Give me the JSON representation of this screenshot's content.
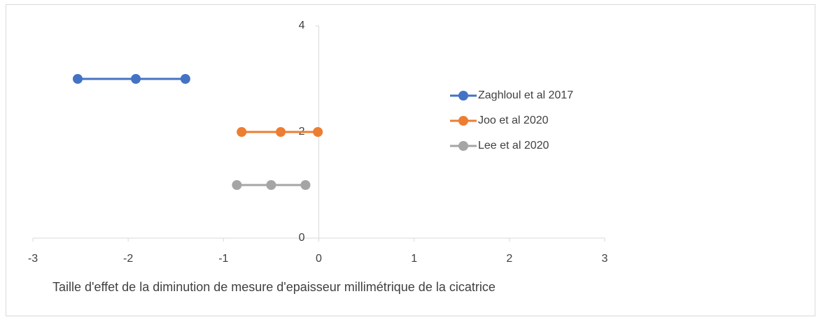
{
  "chart_data": {
    "type": "scatter",
    "x_label": "Taille d'effet de la diminution de mesure d'epaisseur millimétrique de la cicatrice",
    "series": [
      {
        "name": "Zaghloul et al 2017",
        "color": "#4472c4",
        "x": [
          -2.53,
          -1.92,
          -1.4
        ],
        "values": [
          3,
          3,
          3
        ]
      },
      {
        "name": "Joo et al 2020",
        "color": "#ed7d31",
        "x": [
          -0.81,
          -0.4,
          -0.01
        ],
        "values": [
          2,
          2,
          2
        ]
      },
      {
        "name": "Lee et al 2020",
        "color": "#a5a5a5",
        "x": [
          -0.86,
          -0.5,
          -0.14
        ],
        "values": [
          1,
          1,
          1
        ]
      }
    ],
    "xlim": [
      -3,
      3
    ],
    "xticks": [
      -3,
      -2,
      -1,
      0,
      1,
      2,
      3
    ],
    "ylim": [
      0,
      4
    ],
    "yticks": [
      0,
      2,
      4
    ],
    "legend": "right",
    "grid": false
  }
}
